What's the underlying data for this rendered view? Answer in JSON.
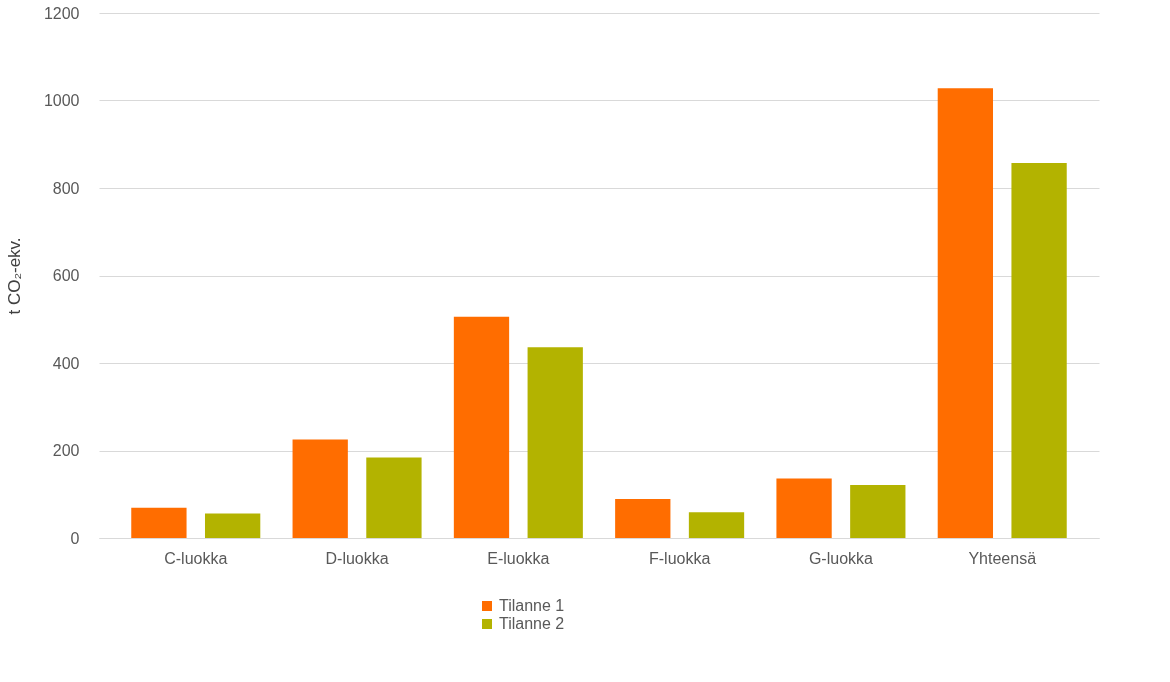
{
  "chart_data": {
    "type": "bar",
    "ylabel": "t CO₂-ekv.",
    "categories": [
      "C-luokka",
      "D-luokka",
      "E-luokka",
      "F-luokka",
      "G-luokka",
      "Yhteensä"
    ],
    "series": [
      {
        "name": "Tilanne 1",
        "color": "#ff6d00",
        "values": [
          69,
          225,
          506,
          89,
          136,
          1028
        ]
      },
      {
        "name": "Tilanne 2",
        "color": "#b3b300",
        "values": [
          56,
          184,
          436,
          59,
          121,
          857
        ]
      }
    ],
    "ylim": [
      0,
      1200
    ],
    "yticks": [
      0,
      200,
      400,
      600,
      800,
      1000,
      1200
    ],
    "grid": "y",
    "legend": "bottom"
  }
}
